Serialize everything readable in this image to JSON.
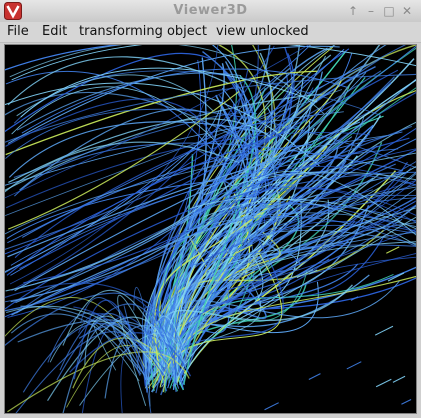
{
  "window": {
    "title": "Viewer3D"
  },
  "title_controls": [
    "↑",
    "–",
    "□",
    "✕"
  ],
  "menu": {
    "items": [
      "File",
      "Edit",
      "transforming object",
      "view unlocked"
    ]
  },
  "viewport": {
    "background": "#000000",
    "stream_colors": [
      "#2a5fd6",
      "#3f7fe8",
      "#5aa3f0",
      "#7fd0f5",
      "#3fd0b0",
      "#c8e85a"
    ]
  }
}
